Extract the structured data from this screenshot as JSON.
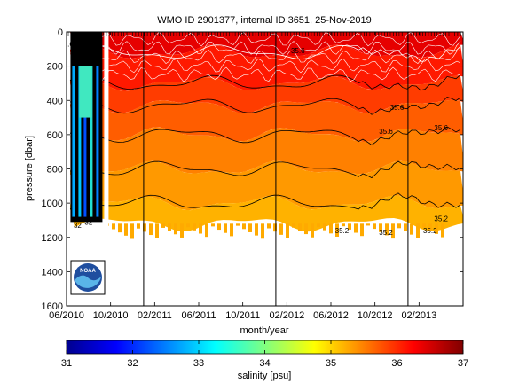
{
  "chart_data": {
    "type": "heatmap",
    "title": "WMO ID 2901377, internal ID 3651, 25-Nov-2019",
    "xlabel": "month/year",
    "ylabel": "pressure [dbar]",
    "colorbar_label": "salinity [psu]",
    "x_ticks": [
      "06/2010",
      "10/2010",
      "02/2011",
      "06/2011",
      "10/2011",
      "02/2012",
      "06/2012",
      "10/2012",
      "02/2013"
    ],
    "x_range": [
      "2010-06",
      "2013-06"
    ],
    "y_ticks": [
      0,
      200,
      400,
      600,
      800,
      1000,
      1200,
      1400,
      1600
    ],
    "ylim": [
      1600,
      0
    ],
    "y_reversed": true,
    "colorbar_ticks": [
      31,
      32,
      33,
      34,
      35,
      36,
      37
    ],
    "color_range": [
      31,
      37
    ],
    "bands": [
      {
        "depth_top": 0,
        "depth_bottom": 120,
        "salinity": 36.4
      },
      {
        "depth_top": 120,
        "depth_bottom": 300,
        "salinity": 36.1
      },
      {
        "depth_top": 300,
        "depth_bottom": 430,
        "salinity": 35.9
      },
      {
        "depth_top": 430,
        "depth_bottom": 600,
        "salinity": 35.7
      },
      {
        "depth_top": 600,
        "depth_bottom": 800,
        "salinity": 35.5
      },
      {
        "depth_top": 800,
        "depth_bottom": 1000,
        "salinity": 35.35
      },
      {
        "depth_top": 1000,
        "depth_bottom": 1120,
        "salinity": 35.2
      }
    ],
    "contour_labels": [
      {
        "text": "35.6",
        "x": "2010-06",
        "y": 70
      },
      {
        "text": "35.6",
        "x": "2012-03",
        "y": 110
      },
      {
        "text": "35.6",
        "x": "2012-12",
        "y": 440
      },
      {
        "text": "35.6",
        "x": "2012-11",
        "y": 580
      },
      {
        "text": "35.6",
        "x": "2013-04",
        "y": 560
      },
      {
        "text": "35.2",
        "x": "2012-07",
        "y": 1160
      },
      {
        "text": "35.2",
        "x": "2012-11",
        "y": 1170
      },
      {
        "text": "35.2",
        "x": "2013-03",
        "y": 1160
      },
      {
        "text": "35.2",
        "x": "2013-04",
        "y": 1090
      },
      {
        "text": "32",
        "x": "2010-07",
        "y": 1130
      },
      {
        "text": "32",
        "x": "2010-08",
        "y": 1110
      }
    ],
    "vertical_lines": [
      "2011-01",
      "2012-01",
      "2013-01"
    ]
  },
  "logo": {
    "text": "NOAA"
  }
}
